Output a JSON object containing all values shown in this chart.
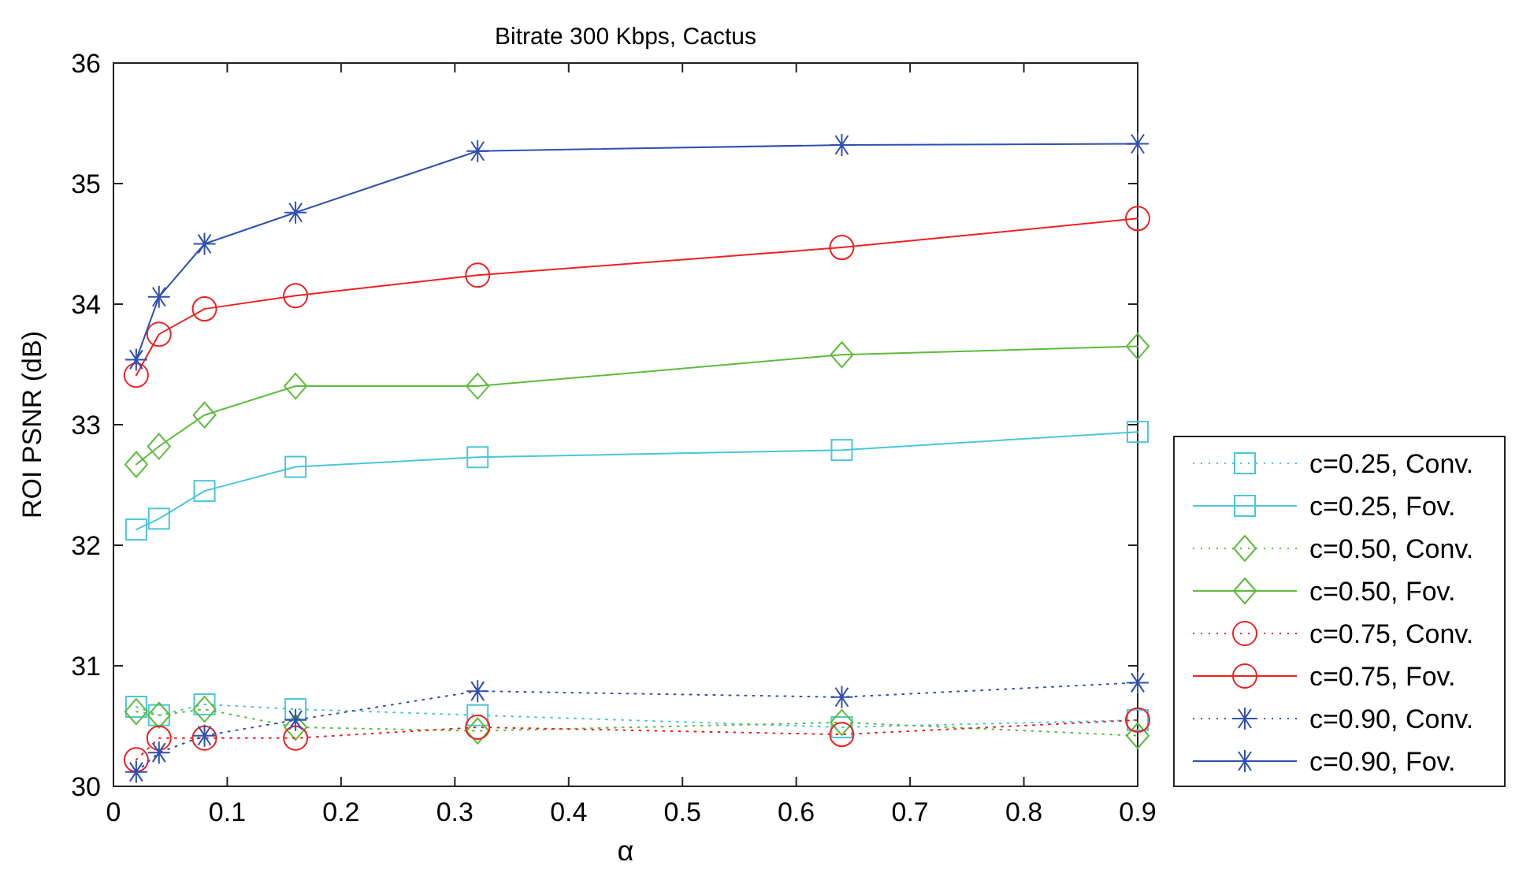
{
  "chart_data": {
    "type": "line",
    "title": "Bitrate 300 Kbps, Cactus",
    "xlabel": "α",
    "ylabel": "ROI PSNR (dB)",
    "x": [
      0.02,
      0.04,
      0.08,
      0.16,
      0.32,
      0.64,
      0.9
    ],
    "xlim": [
      0,
      0.9
    ],
    "xticks": [
      0,
      0.1,
      0.2,
      0.3,
      0.4,
      0.5,
      0.6,
      0.7,
      0.8,
      0.9
    ],
    "ylim": [
      30,
      36
    ],
    "yticks": [
      30,
      31,
      32,
      33,
      34,
      35,
      36
    ],
    "grid": false,
    "legend": "bottom right",
    "series": [
      {
        "name": "c=0.25, Conv.",
        "color": "#4bc6d8",
        "marker": "square",
        "line_style": "dotted",
        "values": [
          30.66,
          30.59,
          30.68,
          30.64,
          30.59,
          30.49,
          30.55
        ]
      },
      {
        "name": "c=0.25, Fov.",
        "color": "#4bc6d8",
        "marker": "square",
        "line_style": "solid",
        "values": [
          32.13,
          32.22,
          32.45,
          32.65,
          32.73,
          32.79,
          32.94
        ]
      },
      {
        "name": "c=0.50, Conv.",
        "color": "#5dbb3a",
        "marker": "diamond",
        "line_style": "dotted",
        "values": [
          30.62,
          30.59,
          30.64,
          30.49,
          30.46,
          30.53,
          30.42
        ]
      },
      {
        "name": "c=0.50, Fov.",
        "color": "#5dbb3a",
        "marker": "diamond",
        "line_style": "solid",
        "values": [
          32.67,
          32.82,
          33.08,
          33.32,
          33.32,
          33.58,
          33.65
        ]
      },
      {
        "name": "c=0.75, Conv.",
        "color": "#ee2020",
        "marker": "circle",
        "line_style": "dotted",
        "values": [
          30.22,
          30.4,
          30.4,
          30.4,
          30.49,
          30.43,
          30.55
        ]
      },
      {
        "name": "c=0.75, Fov.",
        "color": "#ee2020",
        "marker": "circle",
        "line_style": "solid",
        "values": [
          33.41,
          33.75,
          33.96,
          34.07,
          34.24,
          34.47,
          34.71
        ]
      },
      {
        "name": "c=0.90, Conv.",
        "color": "#3050b0",
        "marker": "cross",
        "line_style": "dotted",
        "values": [
          30.12,
          30.28,
          30.42,
          30.55,
          30.79,
          30.74,
          30.86
        ]
      },
      {
        "name": "c=0.90, Fov.",
        "color": "#3050b0",
        "marker": "cross",
        "line_style": "solid",
        "values": [
          33.54,
          34.06,
          34.5,
          34.76,
          35.27,
          35.32,
          35.33
        ]
      }
    ]
  }
}
